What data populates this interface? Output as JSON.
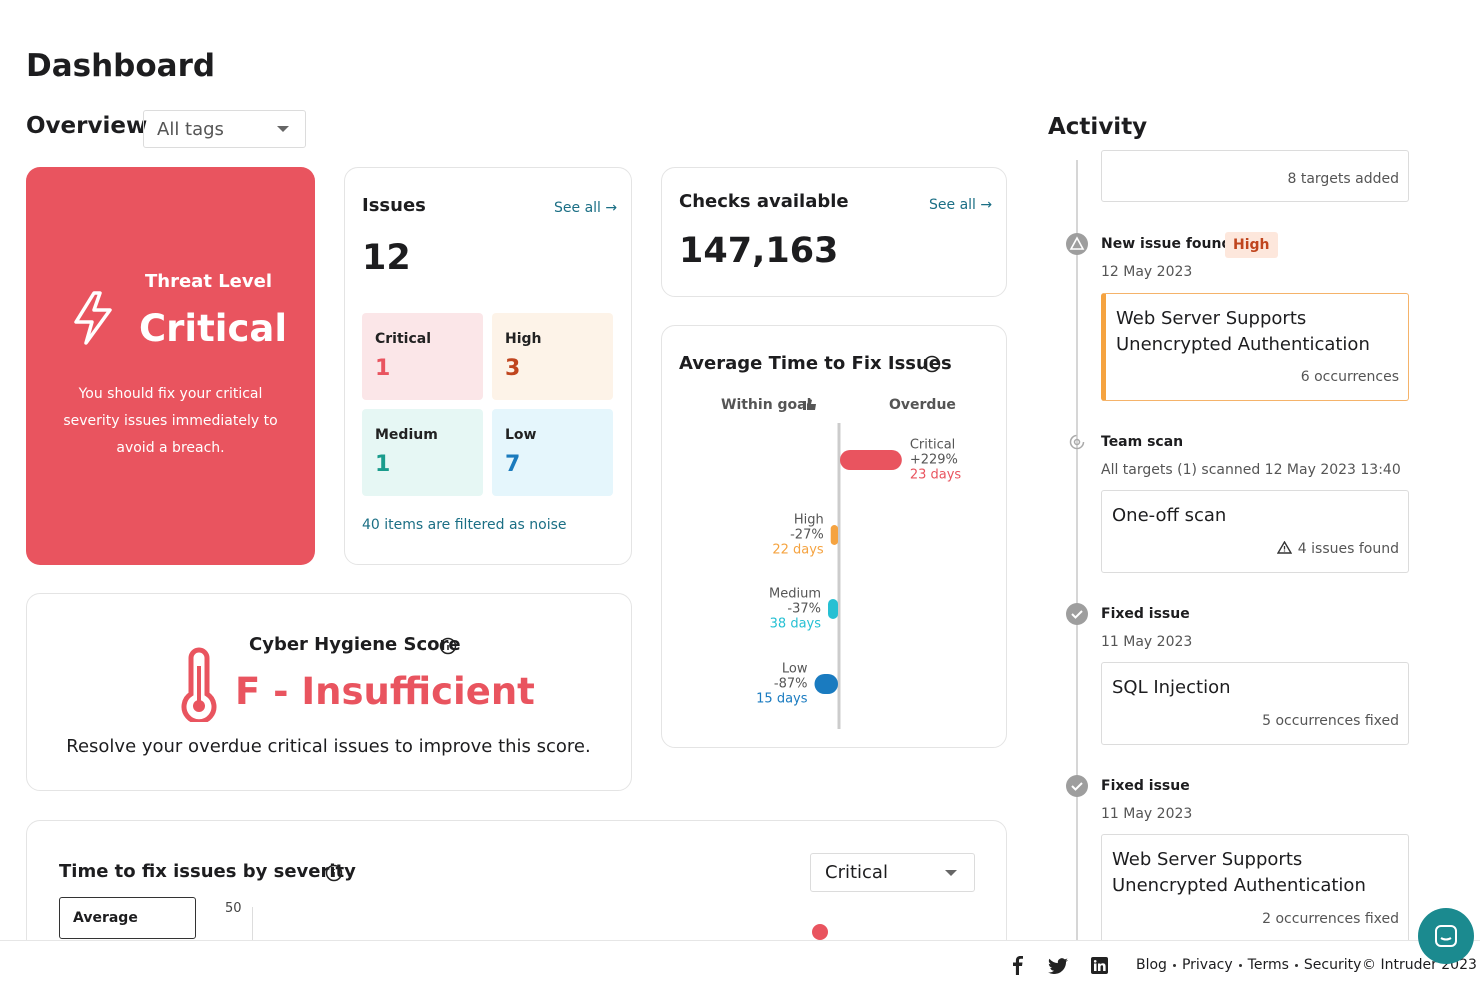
{
  "header": {
    "title": "Dashboard"
  },
  "overview": {
    "title": "Overview",
    "tag_filter": "All tags"
  },
  "threat": {
    "label": "Threat Level",
    "level": "Critical",
    "message": "You should fix your critical severity issues immediately to avoid a breach."
  },
  "issues": {
    "title": "Issues",
    "link": "See all",
    "total": 12,
    "tiles": [
      {
        "label": "Critical",
        "count": 1
      },
      {
        "label": "High",
        "count": 3
      },
      {
        "label": "Medium",
        "count": 1
      },
      {
        "label": "Low",
        "count": 7
      }
    ],
    "note": "40 items are filtered as noise"
  },
  "checks": {
    "title": "Checks available",
    "link": "See all",
    "total": "147,163"
  },
  "fix_time": {
    "title": "Average Time to Fix Issues",
    "within_goal": "Within goal",
    "overdue": "Overdue",
    "rows": [
      {
        "severity": "Critical",
        "change": {
          "value": 229,
          "label": "+229%"
        },
        "days": "23 days",
        "color": "#e9545f"
      },
      {
        "severity": "High",
        "change": {
          "value": -27,
          "label": "-27%"
        },
        "days": "22 days",
        "color": "#f5a340"
      },
      {
        "severity": "Medium",
        "change": {
          "value": -37,
          "label": "-37%"
        },
        "days": "38 days",
        "color": "#26c0d3"
      },
      {
        "severity": "Low",
        "change": {
          "value": -87,
          "label": "-87%"
        },
        "days": "15 days",
        "color": "#1a7bc0"
      }
    ]
  },
  "hygiene": {
    "title": "Cyber Hygiene Score",
    "grade": "F - Insufficient",
    "message": "Resolve your overdue critical issues to improve this score."
  },
  "severity_chart": {
    "title": "Time to fix issues by severity",
    "severity_filter": "Critical",
    "tab": "Average",
    "axis_tick": 50
  },
  "activity": {
    "title": "Activity",
    "items": [
      {
        "card_meta": "8 targets added"
      },
      {
        "event": "New issue found",
        "badge": "High",
        "detail": "12 May 2023",
        "card_title": "Web Server Supports Unencrypted Authentication",
        "card_meta": "6 occurrences"
      },
      {
        "event": "Team scan",
        "detail": "All targets (1) scanned 12 May 2023 13:40",
        "card_title": "One-off scan",
        "card_meta": "4 issues found"
      },
      {
        "event": "Fixed issue",
        "detail": "11 May 2023",
        "card_title": "SQL Injection",
        "card_meta": "5 occurrences fixed"
      },
      {
        "event": "Fixed issue",
        "detail": "11 May 2023",
        "card_title": "Web Server Supports Unencrypted Authentication",
        "card_meta": "2 occurrences fixed"
      }
    ]
  },
  "footer": {
    "links": [
      "Blog",
      "Privacy",
      "Terms",
      "Security"
    ],
    "copyright": "© Intruder 2023"
  }
}
